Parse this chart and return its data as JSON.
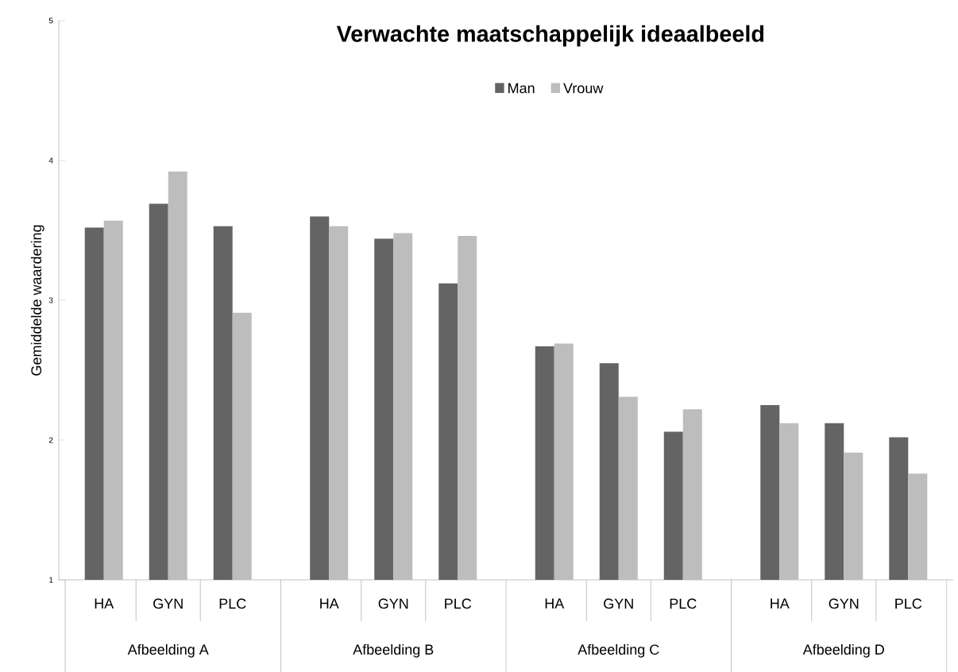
{
  "chart_data": {
    "type": "bar",
    "title": "Verwachte  maatschappelijk  ideaalbeeld",
    "ylabel": "Gemiddelde waardering",
    "categories": [
      "HA",
      "GYN",
      "PLC",
      "HA",
      "GYN",
      "PLC",
      "HA",
      "GYN",
      "PLC",
      "HA",
      "GYN",
      "PLC"
    ],
    "series": [
      {
        "name": "Man",
        "color": "#646464",
        "values": [
          3.52,
          3.69,
          3.53,
          3.6,
          3.44,
          3.12,
          2.67,
          2.55,
          2.06,
          2.25,
          2.12,
          2.02
        ]
      },
      {
        "name": "Vrouw",
        "color": "#bdbdbd",
        "values": [
          3.57,
          3.92,
          2.91,
          3.53,
          3.48,
          3.46,
          2.69,
          2.31,
          2.22,
          2.12,
          1.91,
          1.76
        ]
      }
    ],
    "annotations": [
      "Afbeelding A",
      "Afbeelding B",
      "Afbeelding C",
      "Afbeelding D"
    ],
    "ylim": [
      1,
      5
    ],
    "yticks": [
      1,
      2,
      3,
      4,
      5
    ],
    "grid": false,
    "legend": "top"
  }
}
